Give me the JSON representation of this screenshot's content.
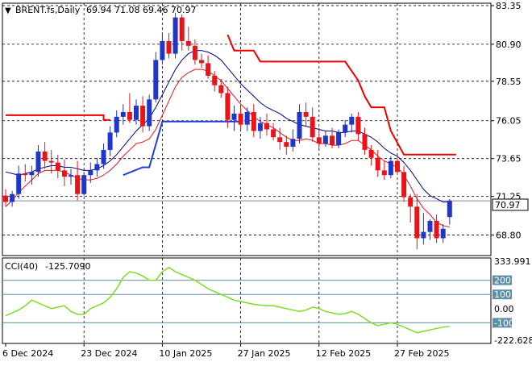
{
  "chart_data": [
    {
      "type": "candlestick",
      "symbol_label": "BRENT.fs,Daily",
      "ohlc_label": "69.94 71.08 69.46 70.97",
      "last_price_tag": "70.97",
      "y_ticks": [
        "83.35",
        "80.90",
        "78.55",
        "76.05",
        "73.65",
        "71.25",
        "68.80"
      ],
      "y_tick_values": [
        83.35,
        80.9,
        78.55,
        76.05,
        73.65,
        71.25,
        68.8
      ],
      "ylim": [
        67.5,
        83.5
      ],
      "x_labels": [
        "6 Dec 2024",
        "23 Dec 2024",
        "10 Jan 2025",
        "27 Jan 2025",
        "12 Feb 2025",
        "27 Feb 2025"
      ],
      "x_label_index": [
        0,
        12,
        24,
        36,
        48,
        60
      ],
      "grid": true,
      "colors": {
        "up": "#1f36c8",
        "down": "#e8141a",
        "ma_fast": "#e8141a",
        "ma_slow": "#000080",
        "stop_red": "#ee0000",
        "stop_blue": "#1f3fd8",
        "cci": "#7fdd1f",
        "price_line": "#7a8aa0"
      },
      "candles": [
        {
          "o": 71.3,
          "h": 71.7,
          "l": 70.6,
          "c": 70.9
        },
        {
          "o": 70.9,
          "h": 71.6,
          "l": 70.6,
          "c": 71.4
        },
        {
          "o": 71.4,
          "h": 73.2,
          "l": 71.1,
          "c": 72.7
        },
        {
          "o": 72.7,
          "h": 73.3,
          "l": 72.2,
          "c": 72.6
        },
        {
          "o": 72.6,
          "h": 73.2,
          "l": 72.0,
          "c": 72.8
        },
        {
          "o": 72.8,
          "h": 74.5,
          "l": 72.5,
          "c": 74.1
        },
        {
          "o": 74.1,
          "h": 74.7,
          "l": 73.0,
          "c": 73.5
        },
        {
          "o": 73.5,
          "h": 74.2,
          "l": 72.7,
          "c": 73.4
        },
        {
          "o": 73.4,
          "h": 73.9,
          "l": 72.4,
          "c": 72.9
        },
        {
          "o": 72.9,
          "h": 73.6,
          "l": 71.9,
          "c": 72.5
        },
        {
          "o": 72.5,
          "h": 73.0,
          "l": 72.0,
          "c": 72.6
        },
        {
          "o": 72.6,
          "h": 73.5,
          "l": 71.0,
          "c": 71.4
        },
        {
          "o": 71.4,
          "h": 72.8,
          "l": 71.3,
          "c": 72.6
        },
        {
          "o": 72.6,
          "h": 73.4,
          "l": 72.1,
          "c": 72.9
        },
        {
          "o": 72.9,
          "h": 73.7,
          "l": 72.5,
          "c": 73.3
        },
        {
          "o": 73.3,
          "h": 74.6,
          "l": 73.0,
          "c": 74.2
        },
        {
          "o": 74.2,
          "h": 75.7,
          "l": 73.8,
          "c": 75.3
        },
        {
          "o": 75.3,
          "h": 76.7,
          "l": 75.0,
          "c": 76.3
        },
        {
          "o": 76.3,
          "h": 77.1,
          "l": 75.8,
          "c": 76.6
        },
        {
          "o": 76.6,
          "h": 77.8,
          "l": 75.9,
          "c": 76.1
        },
        {
          "o": 76.1,
          "h": 77.4,
          "l": 75.8,
          "c": 77.0
        },
        {
          "o": 77.0,
          "h": 77.6,
          "l": 75.3,
          "c": 75.7
        },
        {
          "o": 75.7,
          "h": 77.7,
          "l": 75.4,
          "c": 77.4
        },
        {
          "o": 77.4,
          "h": 80.4,
          "l": 77.2,
          "c": 79.9
        },
        {
          "o": 79.9,
          "h": 81.6,
          "l": 79.6,
          "c": 81.1
        },
        {
          "o": 81.1,
          "h": 81.6,
          "l": 80.0,
          "c": 80.3
        },
        {
          "o": 80.3,
          "h": 82.9,
          "l": 80.0,
          "c": 82.6
        },
        {
          "o": 82.6,
          "h": 82.8,
          "l": 80.5,
          "c": 81.1
        },
        {
          "o": 81.1,
          "h": 82.0,
          "l": 80.5,
          "c": 80.8
        },
        {
          "o": 80.8,
          "h": 81.2,
          "l": 79.6,
          "c": 79.9
        },
        {
          "o": 79.9,
          "h": 80.3,
          "l": 79.4,
          "c": 79.7
        },
        {
          "o": 79.7,
          "h": 80.2,
          "l": 78.7,
          "c": 78.9
        },
        {
          "o": 78.9,
          "h": 79.2,
          "l": 77.9,
          "c": 78.3
        },
        {
          "o": 78.3,
          "h": 78.7,
          "l": 77.5,
          "c": 77.8
        },
        {
          "o": 77.8,
          "h": 78.2,
          "l": 75.6,
          "c": 76.1
        },
        {
          "o": 76.1,
          "h": 77.0,
          "l": 75.4,
          "c": 76.5
        },
        {
          "o": 76.5,
          "h": 76.9,
          "l": 75.5,
          "c": 75.8
        },
        {
          "o": 75.8,
          "h": 76.9,
          "l": 75.4,
          "c": 76.6
        },
        {
          "o": 76.6,
          "h": 77.1,
          "l": 75.0,
          "c": 75.4
        },
        {
          "o": 75.4,
          "h": 76.3,
          "l": 74.9,
          "c": 75.9
        },
        {
          "o": 75.9,
          "h": 76.5,
          "l": 75.1,
          "c": 75.5
        },
        {
          "o": 75.5,
          "h": 75.9,
          "l": 74.8,
          "c": 75.0
        },
        {
          "o": 75.0,
          "h": 75.6,
          "l": 74.2,
          "c": 74.7
        },
        {
          "o": 74.7,
          "h": 75.1,
          "l": 73.9,
          "c": 74.4
        },
        {
          "o": 74.4,
          "h": 75.5,
          "l": 74.1,
          "c": 74.9
        },
        {
          "o": 74.9,
          "h": 77.1,
          "l": 74.6,
          "c": 76.6
        },
        {
          "o": 76.6,
          "h": 77.2,
          "l": 75.7,
          "c": 76.3
        },
        {
          "o": 76.3,
          "h": 76.9,
          "l": 74.7,
          "c": 75.0
        },
        {
          "o": 75.0,
          "h": 75.6,
          "l": 74.3,
          "c": 74.6
        },
        {
          "o": 74.6,
          "h": 75.4,
          "l": 74.4,
          "c": 75.1
        },
        {
          "o": 75.1,
          "h": 75.6,
          "l": 74.3,
          "c": 74.5
        },
        {
          "o": 74.5,
          "h": 75.5,
          "l": 74.3,
          "c": 75.3
        },
        {
          "o": 75.3,
          "h": 76.1,
          "l": 75.0,
          "c": 75.8
        },
        {
          "o": 75.8,
          "h": 76.5,
          "l": 75.3,
          "c": 76.3
        },
        {
          "o": 76.3,
          "h": 76.6,
          "l": 74.8,
          "c": 75.2
        },
        {
          "o": 75.2,
          "h": 75.6,
          "l": 73.9,
          "c": 74.2
        },
        {
          "o": 74.2,
          "h": 74.5,
          "l": 73.2,
          "c": 73.7
        },
        {
          "o": 73.7,
          "h": 74.2,
          "l": 72.5,
          "c": 72.9
        },
        {
          "o": 72.9,
          "h": 73.5,
          "l": 72.3,
          "c": 72.6
        },
        {
          "o": 72.6,
          "h": 73.8,
          "l": 72.4,
          "c": 73.5
        },
        {
          "o": 73.5,
          "h": 73.8,
          "l": 72.6,
          "c": 72.8
        },
        {
          "o": 72.8,
          "h": 73.2,
          "l": 70.9,
          "c": 71.2
        },
        {
          "o": 71.2,
          "h": 71.4,
          "l": 69.6,
          "c": 70.6
        },
        {
          "o": 70.6,
          "h": 71.4,
          "l": 67.9,
          "c": 68.6
        },
        {
          "o": 68.6,
          "h": 70.2,
          "l": 68.2,
          "c": 69.0
        },
        {
          "o": 69.0,
          "h": 69.8,
          "l": 68.5,
          "c": 69.7
        },
        {
          "o": 69.7,
          "h": 70.1,
          "l": 68.3,
          "c": 68.6
        },
        {
          "o": 68.6,
          "h": 69.5,
          "l": 68.3,
          "c": 69.2
        },
        {
          "o": 69.94,
          "h": 71.08,
          "l": 69.46,
          "c": 70.97
        }
      ],
      "ma_fast": [
        70.6,
        71.0,
        71.5,
        71.9,
        72.3,
        72.7,
        72.9,
        72.9,
        72.9,
        72.8,
        72.6,
        72.4,
        72.3,
        72.3,
        72.4,
        72.6,
        72.9,
        73.3,
        73.8,
        74.2,
        74.6,
        74.7,
        74.9,
        75.5,
        76.4,
        77.3,
        78.2,
        78.8,
        79.1,
        79.3,
        79.3,
        79.2,
        78.9,
        78.6,
        78.1,
        77.6,
        77.1,
        76.7,
        76.3,
        76.0,
        75.8,
        75.6,
        75.3,
        75.0,
        74.8,
        74.8,
        74.9,
        74.8,
        74.6,
        74.6,
        74.5,
        74.5,
        74.6,
        74.8,
        74.8,
        74.5,
        74.2,
        73.8,
        73.5,
        73.3,
        73.1,
        72.6,
        71.9,
        71.1,
        70.5,
        70.1,
        69.6,
        69.4,
        69.3
      ],
      "ma_slow": [
        72.8,
        72.7,
        72.6,
        72.7,
        72.8,
        73.0,
        73.1,
        73.2,
        73.2,
        73.1,
        73.1,
        73.0,
        72.9,
        72.9,
        73.0,
        73.2,
        73.5,
        73.9,
        74.4,
        74.9,
        75.4,
        75.8,
        76.2,
        76.9,
        77.7,
        78.5,
        79.3,
        79.9,
        80.3,
        80.5,
        80.5,
        80.4,
        80.2,
        79.9,
        79.4,
        78.9,
        78.4,
        78.0,
        77.6,
        77.2,
        76.9,
        76.7,
        76.5,
        76.2,
        76.0,
        75.8,
        75.7,
        75.6,
        75.5,
        75.4,
        75.4,
        75.3,
        75.3,
        75.4,
        75.4,
        75.2,
        75.0,
        74.7,
        74.3,
        74.0,
        73.8,
        73.4,
        72.9,
        72.3,
        71.7,
        71.3,
        71.1,
        70.9,
        70.9
      ],
      "stop_red": [
        [
          0,
          76.4
        ],
        [
          15,
          76.4
        ],
        [
          15,
          76.1
        ],
        [
          16,
          76.1
        ],
        [
          null,
          null
        ],
        [
          48,
          null
        ]
      ],
      "stop_red_b": [
        [
          34,
          81.5
        ],
        [
          35,
          80.5
        ],
        [
          38,
          80.5
        ],
        [
          39,
          79.8
        ],
        [
          52,
          79.8
        ],
        [
          54,
          78.6
        ],
        [
          55,
          77.6
        ],
        [
          56,
          76.9
        ],
        [
          58,
          76.9
        ],
        [
          59,
          75.4
        ],
        [
          61,
          73.9
        ],
        [
          69,
          73.9
        ]
      ],
      "stop_blue": [
        [
          18,
          72.6
        ],
        [
          21,
          73.1
        ],
        [
          22,
          73.1
        ],
        [
          24,
          76.0
        ],
        [
          25,
          76.0
        ],
        [
          35,
          76.0
        ],
        [
          36,
          76.0
        ]
      ],
      "cci_panel": {
        "label": "CCI(40)",
        "value_text": "-125.7090",
        "y_ticks": [
          "333.991",
          "200",
          "100",
          "0.00",
          "-100",
          "-222.628"
        ],
        "y_tick_values": [
          333.991,
          200,
          100,
          0,
          -100,
          -222.628
        ],
        "ylim": [
          -222.628,
          333.991
        ],
        "levels": [
          200,
          100,
          -100
        ],
        "values": [
          -50,
          -30,
          -10,
          20,
          60,
          40,
          20,
          0,
          10,
          20,
          -20,
          -40,
          -40,
          0,
          20,
          40,
          80,
          140,
          220,
          260,
          250,
          230,
          200,
          200,
          260,
          290,
          260,
          240,
          220,
          200,
          170,
          140,
          120,
          100,
          80,
          60,
          50,
          40,
          30,
          25,
          20,
          20,
          10,
          0,
          -10,
          -20,
          -10,
          10,
          0,
          -20,
          -30,
          -40,
          -35,
          -20,
          -40,
          -70,
          -100,
          -120,
          -110,
          -100,
          -110,
          -130,
          -150,
          -170,
          -160,
          -150,
          -140,
          -130,
          -125.709
        ]
      }
    }
  ]
}
